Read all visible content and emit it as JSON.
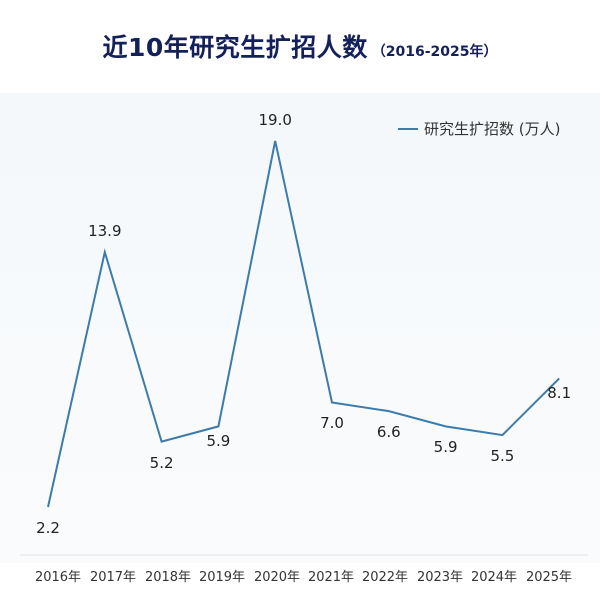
{
  "title": {
    "main": "近10年研究生扩招人数",
    "sub": "（2016-2025年）"
  },
  "legend": {
    "label": "研究生扩招数 (万人)",
    "color": "#3d7bab"
  },
  "chart_data": {
    "type": "line",
    "title": "近10年研究生扩招人数（2016-2025年）",
    "xlabel": "",
    "ylabel": "",
    "categories": [
      "2016年",
      "2017年",
      "2018年",
      "2019年",
      "2020年",
      "2021年",
      "2022年",
      "2023年",
      "2024年",
      "2025年"
    ],
    "series": [
      {
        "name": "研究生扩招数 (万人)",
        "values": [
          2.2,
          13.9,
          5.2,
          5.9,
          19.0,
          7.0,
          6.6,
          5.9,
          5.5,
          8.1
        ],
        "labels": [
          "2.2",
          "13.9",
          "5.2",
          "5.9",
          "19.0",
          "7.0",
          "6.6",
          "5.9",
          "5.5",
          "8.1"
        ],
        "color": "#3d7bab"
      }
    ],
    "grid": false,
    "legend_position": "top-right",
    "axes_visible": {
      "x_ticks": true,
      "y_ticks": false
    }
  }
}
